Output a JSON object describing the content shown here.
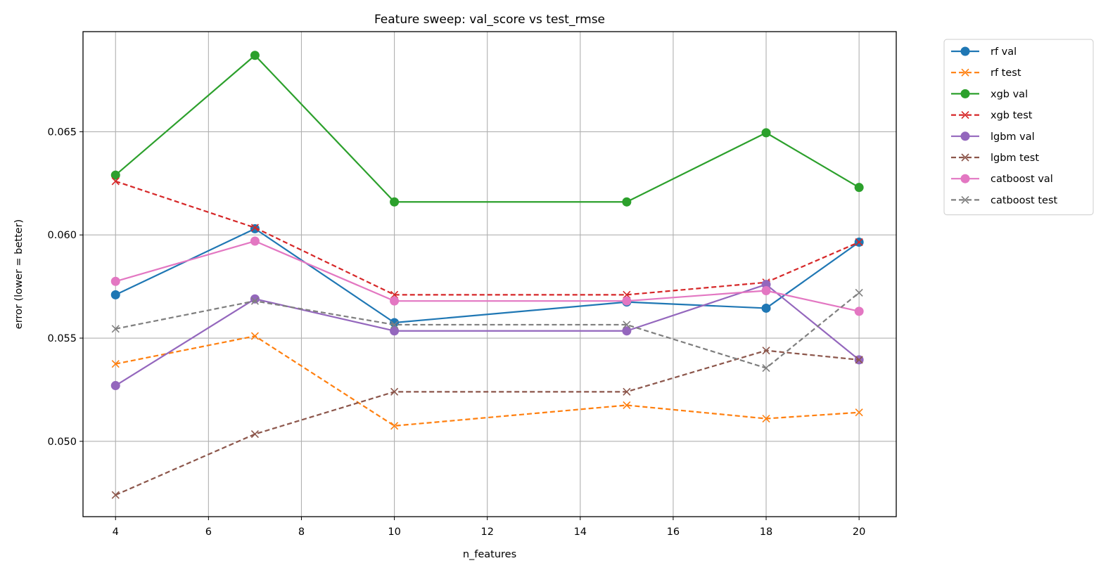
{
  "chart_data": {
    "type": "line",
    "title": "Feature sweep: val_score vs test_rmse",
    "xlabel": "n_features",
    "ylabel": "error (lower = better)",
    "x": [
      4,
      7,
      10,
      15,
      18,
      20
    ],
    "xlim": [
      3.3,
      20.8
    ],
    "ylim": [
      0.04635,
      0.06985
    ],
    "xticks": [
      4,
      6,
      8,
      10,
      12,
      14,
      16,
      18,
      20
    ],
    "yticks": [
      0.05,
      0.055,
      0.06,
      0.065
    ],
    "ytick_labels": [
      "0.050",
      "0.055",
      "0.060",
      "0.065"
    ],
    "grid": true,
    "legend_placement": "outside upper right",
    "series": [
      {
        "name": "rf val",
        "color": "#1f77b4",
        "style": "solid",
        "marker": "circle",
        "values": [
          0.0571,
          0.0603,
          0.05575,
          0.05675,
          0.05645,
          0.05965
        ]
      },
      {
        "name": "rf test",
        "color": "#ff7f0e",
        "style": "dashed",
        "marker": "x",
        "values": [
          0.05375,
          0.0551,
          0.05075,
          0.05175,
          0.0511,
          0.0514
        ]
      },
      {
        "name": "xgb val",
        "color": "#2ca02c",
        "style": "solid",
        "marker": "circle",
        "values": [
          0.0629,
          0.0687,
          0.0616,
          0.0616,
          0.06495,
          0.0623
        ]
      },
      {
        "name": "xgb test",
        "color": "#d62728",
        "style": "dashed",
        "marker": "x",
        "values": [
          0.0626,
          0.06035,
          0.0571,
          0.0571,
          0.0577,
          0.05965
        ]
      },
      {
        "name": "lgbm val",
        "color": "#9467bd",
        "style": "solid",
        "marker": "circle",
        "values": [
          0.0527,
          0.0569,
          0.05535,
          0.05535,
          0.0576,
          0.05395
        ]
      },
      {
        "name": "lgbm test",
        "color": "#8c564b",
        "style": "dashed",
        "marker": "x",
        "values": [
          0.0474,
          0.05035,
          0.0524,
          0.0524,
          0.0544,
          0.05395
        ]
      },
      {
        "name": "catboost val",
        "color": "#e377c2",
        "style": "solid",
        "marker": "circle",
        "values": [
          0.05775,
          0.0597,
          0.0568,
          0.0568,
          0.0573,
          0.0563
        ]
      },
      {
        "name": "catboost test",
        "color": "#7f7f7f",
        "style": "dashed",
        "marker": "x",
        "values": [
          0.05545,
          0.0568,
          0.05565,
          0.05565,
          0.05355,
          0.0572
        ]
      }
    ]
  }
}
